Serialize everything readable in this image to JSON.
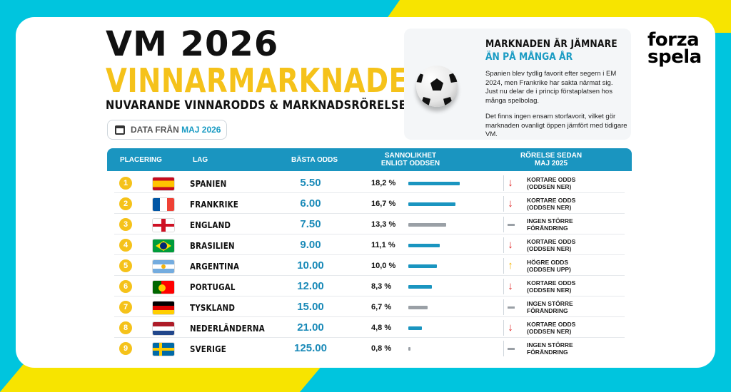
{
  "colors": {
    "accent_blue": "#1a95c0",
    "accent_yellow": "#f5c21a",
    "arrow_down": "#e02424",
    "arrow_up": "#f5b400",
    "neutral": "#9aa0a6",
    "background": "#00c5de"
  },
  "header": {
    "title": "VM 2026",
    "subtitle": "VINNARMARKNADEN",
    "tagline": "NUVARANDE VINNARODDS & MARKNADSRÖRELSER",
    "date_label": "DATA FRÅN",
    "date_value": "MAJ 2026",
    "date_icon": "calendar-icon"
  },
  "info_box": {
    "icon": "soccer-ball-icon",
    "title_line1": "MARKNADEN ÄR JÄMNARE",
    "title_line2": "ÄN PÅ MÅNGA ÅR",
    "paragraph1": "Spanien blev tydlig favorit efter segern i EM 2024, men Frankrike har sakta närmat sig. Just nu delar de i princip förstaplatsen hos många spelbolag.",
    "paragraph2": "Det finns ingen ensam storfavorit, vilket gör marknaden ovanligt öppen jämfört med tidigare VM."
  },
  "logo": {
    "line1": "forza",
    "line2": "spela"
  },
  "table": {
    "headers": {
      "placement": "PLACERING",
      "team": "LAG",
      "odds": "BÄSTA ODDS",
      "prob_line1": "SANNOLIKHET",
      "prob_line2": "ENLIGT ODDSEN",
      "move_line1": "RÖRELSE SEDAN",
      "move_line2": "MAJ 2025"
    },
    "rows": [
      {
        "rank": "1",
        "team": "SPANIEN",
        "flag": "spain-flag",
        "odds": "5.50",
        "prob_text": "18,2 %",
        "prob": 18.2,
        "move": "down",
        "move_line1": "KORTARE ODDS",
        "move_line2": "(ODDSEN NER)"
      },
      {
        "rank": "2",
        "team": "FRANKRIKE",
        "flag": "france-flag",
        "odds": "6.00",
        "prob_text": "16,7 %",
        "prob": 16.7,
        "move": "down",
        "move_line1": "KORTARE ODDS",
        "move_line2": "(ODDSEN NER)"
      },
      {
        "rank": "3",
        "team": "ENGLAND",
        "flag": "england-flag",
        "odds": "7.50",
        "prob_text": "13,3 %",
        "prob": 13.3,
        "move": "none",
        "move_line1": "INGEN STÖRRE",
        "move_line2": "FÖRÄNDRING"
      },
      {
        "rank": "4",
        "team": "BRASILIEN",
        "flag": "brazil-flag",
        "odds": "9.00",
        "prob_text": "11,1 %",
        "prob": 11.1,
        "move": "down",
        "move_line1": "KORTARE ODDS",
        "move_line2": "(ODDSEN NER)"
      },
      {
        "rank": "5",
        "team": "ARGENTINA",
        "flag": "argentina-flag",
        "odds": "10.00",
        "prob_text": "10,0 %",
        "prob": 10.0,
        "move": "up",
        "move_line1": "HÖGRE ODDS",
        "move_line2": "(ODDSEN UPP)"
      },
      {
        "rank": "6",
        "team": "PORTUGAL",
        "flag": "portugal-flag",
        "odds": "12.00",
        "prob_text": "8,3 %",
        "prob": 8.3,
        "move": "down",
        "move_line1": "KORTARE ODDS",
        "move_line2": "(ODDSEN NER)"
      },
      {
        "rank": "7",
        "team": "TYSKLAND",
        "flag": "germany-flag",
        "odds": "15.00",
        "prob_text": "6,7 %",
        "prob": 6.7,
        "move": "none",
        "move_line1": "INGEN STÖRRE",
        "move_line2": "FÖRÄNDRING"
      },
      {
        "rank": "8",
        "team": "NEDERLÄNDERNA",
        "flag": "netherlands-flag",
        "odds": "21.00",
        "prob_text": "4,8 %",
        "prob": 4.8,
        "move": "down",
        "move_line1": "KORTARE ODDS",
        "move_line2": "(ODDSEN NER)"
      },
      {
        "rank": "9",
        "team": "SVERIGE",
        "flag": "sweden-flag",
        "odds": "125.00",
        "prob_text": "0,8 %",
        "prob": 0.8,
        "move": "none",
        "move_line1": "INGEN STÖRRE",
        "move_line2": "FÖRÄNDRING"
      }
    ]
  }
}
